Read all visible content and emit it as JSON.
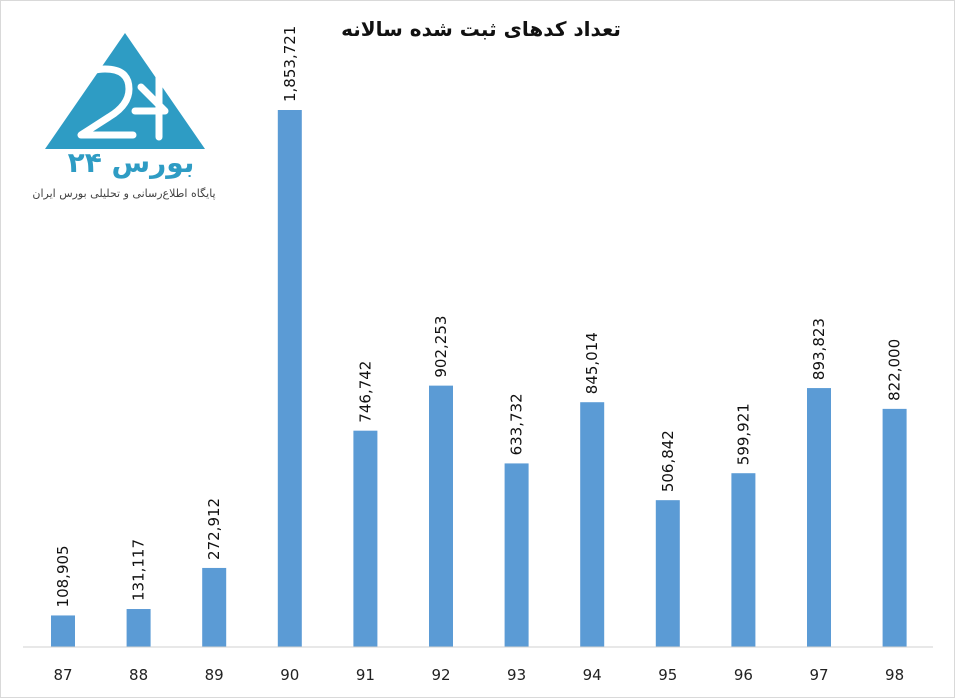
{
  "logo": {
    "name": "بورس ۲۴",
    "tagline": "پایگاه اطلاع‌رسانی و تحلیلی بورس ایران",
    "color": "#2e9cc4"
  },
  "chart_data": {
    "type": "bar",
    "title": "تعداد کدهای ثبت شده سالانه",
    "xlabel": "",
    "ylabel": "",
    "categories": [
      "87",
      "88",
      "89",
      "90",
      "91",
      "92",
      "93",
      "94",
      "95",
      "96",
      "97",
      "98"
    ],
    "values": [
      108905,
      131117,
      272912,
      1853721,
      746742,
      902253,
      633732,
      845014,
      506842,
      599921,
      893823,
      822000
    ],
    "data_labels": [
      "108,905",
      "131,117",
      "272,912",
      "1,853,721",
      "746,742",
      "902,253",
      "633,732",
      "845,014",
      "506,842",
      "599,921",
      "893,823",
      "822,000"
    ],
    "ylim": [
      0,
      1853721
    ],
    "grid": false,
    "legend": "none",
    "bar_color": "#5b9bd5"
  }
}
